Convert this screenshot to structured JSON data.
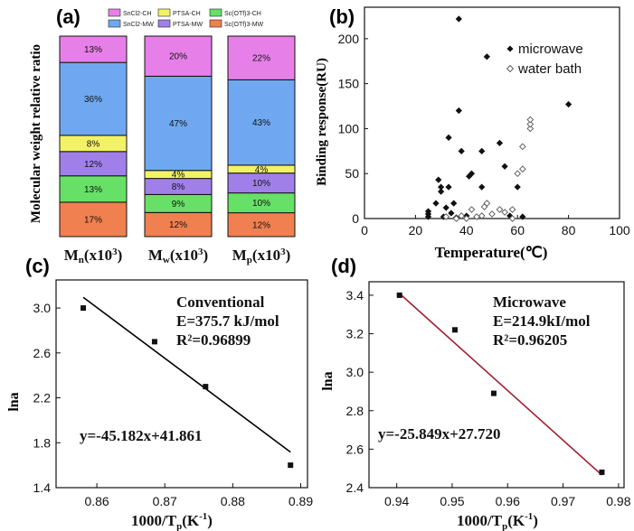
{
  "chart_data": [
    {
      "panel": "(a)",
      "type": "bar",
      "stacked": true,
      "ylabel": "Molecular weight relative ratio",
      "categories": [
        "Mn(x10³)",
        "Mw(x10³)",
        "Mp(x10³)"
      ],
      "category_labels": [
        {
          "main": "M",
          "sub": "n",
          "rest": "(x10",
          "sup": "3",
          "close": ")"
        },
        {
          "main": "M",
          "sub": "w",
          "rest": "(x10",
          "sup": "3",
          "close": ")"
        },
        {
          "main": "M",
          "sub": "p",
          "rest": "(x10",
          "sup": "3",
          "close": ")"
        }
      ],
      "legend": [
        {
          "name": "SnCl2-CH",
          "color": "#e680e8"
        },
        {
          "name": "PTSA-CH",
          "color": "#f2f266"
        },
        {
          "name": "Sc(OTf)3-CH",
          "color": "#66e066"
        },
        {
          "name": "SnCl2-MW",
          "color": "#6fa8f0"
        },
        {
          "name": "PTSA-MW",
          "color": "#a080e8"
        },
        {
          "name": "Sc(OTf)3-MW",
          "color": "#f08050"
        }
      ],
      "series_order_bottom_to_top": [
        "Sc(OTf)3-MW",
        "Sc(OTf)3-CH",
        "PTSA-MW",
        "PTSA-CH",
        "SnCl2-MW",
        "SnCl2-CH"
      ],
      "stacks": [
        {
          "category": "Mn(x10³)",
          "values": {
            "Sc(OTf)3-MW": 17,
            "Sc(OTf)3-CH": 13,
            "PTSA-MW": 12,
            "PTSA-CH": 8,
            "SnCl2-MW": 36,
            "SnCl2-CH": 13
          }
        },
        {
          "category": "Mw(x10³)",
          "values": {
            "Sc(OTf)3-MW": 12,
            "Sc(OTf)3-CH": 9,
            "PTSA-MW": 8,
            "PTSA-CH": 4,
            "SnCl2-MW": 47,
            "SnCl2-CH": 20
          }
        },
        {
          "category": "Mp(x10³)",
          "values": {
            "Sc(OTf)3-MW": 12,
            "Sc(OTf)3-CH": 10,
            "PTSA-MW": 10,
            "PTSA-CH": 4,
            "SnCl2-MW": 43,
            "SnCl2-CH": 22
          }
        }
      ],
      "value_suffix": "%"
    },
    {
      "panel": "(b)",
      "type": "scatter",
      "xlabel": "Temperature(℃)",
      "ylabel": "Binding response(RU)",
      "xlim": [
        0,
        100
      ],
      "ylim": [
        0,
        235
      ],
      "xticks": [
        0,
        20,
        40,
        60,
        80,
        100
      ],
      "yticks": [
        0,
        50,
        100,
        150,
        200
      ],
      "legend": [
        "microwave",
        "water bath"
      ],
      "series": [
        {
          "name": "microwave",
          "marker": "filled-diamond",
          "points": [
            [
              25,
              2
            ],
            [
              25,
              5
            ],
            [
              25,
              8
            ],
            [
              28,
              17
            ],
            [
              29,
              43
            ],
            [
              30,
              30
            ],
            [
              30,
              35
            ],
            [
              31,
              2
            ],
            [
              32,
              12
            ],
            [
              33,
              35
            ],
            [
              33,
              90
            ],
            [
              34,
              6
            ],
            [
              35,
              17
            ],
            [
              36,
              1
            ],
            [
              37,
              120
            ],
            [
              37,
              222
            ],
            [
              38,
              75
            ],
            [
              40,
              3
            ],
            [
              41,
              47
            ],
            [
              42,
              50
            ],
            [
              46,
              75
            ],
            [
              46,
              35
            ],
            [
              48,
              180
            ],
            [
              53,
              84
            ],
            [
              55,
              58
            ],
            [
              57,
              3
            ],
            [
              60,
              35
            ],
            [
              62,
              2
            ],
            [
              80,
              127
            ]
          ]
        },
        {
          "name": "water bath",
          "marker": "open-diamond",
          "points": [
            [
              32,
              2
            ],
            [
              36,
              0
            ],
            [
              38,
              3
            ],
            [
              40,
              0
            ],
            [
              42,
              10
            ],
            [
              44,
              2
            ],
            [
              46,
              3
            ],
            [
              47,
              13
            ],
            [
              48,
              17
            ],
            [
              50,
              5
            ],
            [
              53,
              10
            ],
            [
              55,
              7
            ],
            [
              58,
              0
            ],
            [
              58,
              10
            ],
            [
              60,
              50
            ],
            [
              62,
              55
            ],
            [
              62,
              80
            ],
            [
              65,
              100
            ],
            [
              65,
              105
            ],
            [
              65,
              110
            ]
          ]
        }
      ]
    },
    {
      "panel": "(c)",
      "type": "scatter",
      "fit_line": true,
      "xlabel_parts": {
        "main": "1000/T",
        "sub": "p",
        "tail": "(K",
        "sup": "-1",
        "close": ")"
      },
      "ylabel": "lna",
      "xlim": [
        0.854,
        0.891
      ],
      "ylim": [
        1.4,
        3.25
      ],
      "xticks": [
        0.86,
        0.87,
        0.88,
        0.89
      ],
      "yticks": [
        1.4,
        1.8,
        2.2,
        2.6,
        3.0
      ],
      "points": [
        [
          0.858,
          3.0
        ],
        [
          0.8685,
          2.7
        ],
        [
          0.876,
          2.3
        ],
        [
          0.8885,
          1.6
        ]
      ],
      "fit": {
        "slope": -45.182,
        "intercept": 41.861,
        "x_range": [
          0.858,
          0.8885
        ],
        "color": "#000000"
      },
      "annotations": [
        "Conventional",
        "E=375.7 kJ/mol",
        "R²=0.96899",
        "y=-45.182x+41.861"
      ]
    },
    {
      "panel": "(d)",
      "type": "scatter",
      "fit_line": true,
      "xlabel_parts": {
        "main": "1000/T",
        "sub": "p",
        "tail": "(K",
        "sup": "-1",
        "close": ")"
      },
      "ylabel": "lna",
      "xlim": [
        0.935,
        0.981
      ],
      "ylim": [
        2.4,
        3.47
      ],
      "xticks": [
        0.94,
        0.95,
        0.96,
        0.97,
        0.98
      ],
      "yticks": [
        2.4,
        2.6,
        2.8,
        3.0,
        3.2,
        3.4
      ],
      "points": [
        [
          0.9405,
          3.4
        ],
        [
          0.9505,
          3.22
        ],
        [
          0.9575,
          2.89
        ],
        [
          0.977,
          2.48
        ]
      ],
      "fit": {
        "slope": -25.849,
        "intercept": 27.72,
        "x_range": [
          0.9405,
          0.977
        ],
        "color": "#a02030"
      },
      "annotations": [
        "Microwave",
        "E=214.9kI/mol",
        "R²=0.96205",
        "y=-25.849x+27.720"
      ]
    }
  ]
}
